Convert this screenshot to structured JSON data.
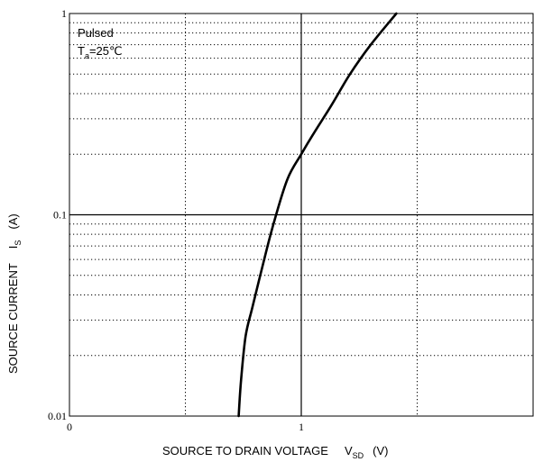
{
  "chart_data": {
    "type": "line",
    "xlabel": "SOURCE TO DRAIN VOLTAGE",
    "xlabel_symbol": "V",
    "xlabel_subscript": "SD",
    "xlabel_unit": "(V)",
    "ylabel": "SOURCE CURRENT",
    "ylabel_symbol": "I",
    "ylabel_subscript": "S",
    "ylabel_unit": "(A)",
    "x_scale": "linear",
    "y_scale": "log",
    "xlim": [
      0,
      2.0
    ],
    "ylim": [
      0.01,
      1
    ],
    "x_ticks": [
      {
        "value": 0,
        "label": "0"
      },
      {
        "value": 1,
        "label": "1"
      }
    ],
    "y_ticks": [
      {
        "value": 0.01,
        "label": "0.01"
      },
      {
        "value": 0.1,
        "label": "0.1"
      },
      {
        "value": 1,
        "label": "1"
      }
    ],
    "grid": true,
    "annotation": {
      "line1": "Pulsed",
      "line2_symbol": "T",
      "line2_subscript": "a",
      "line2_rest": "=25℃"
    },
    "series": [
      {
        "color": "#000000",
        "x": [
          0.73,
          0.74,
          0.76,
          0.79,
          0.84,
          0.88,
          0.94,
          1.0,
          1.05,
          1.13,
          1.21,
          1.3,
          1.41
        ],
        "y": [
          0.01,
          0.015,
          0.025,
          0.035,
          0.06,
          0.09,
          0.15,
          0.2,
          0.25,
          0.35,
          0.5,
          0.7,
          1.0
        ]
      }
    ]
  }
}
